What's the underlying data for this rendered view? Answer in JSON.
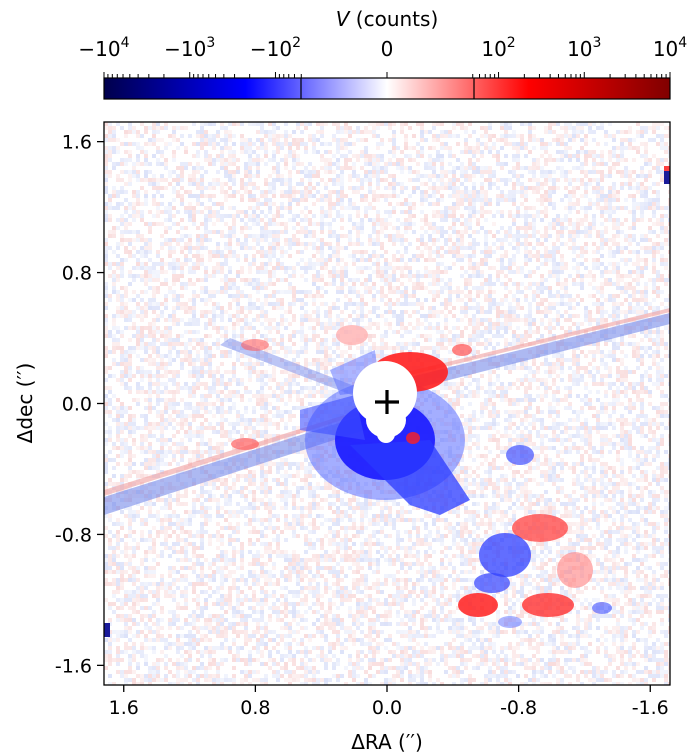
{
  "chart_data": {
    "type": "heatmap",
    "colorbar": {
      "label_var": "V",
      "label_rest": " (counts)",
      "scale": "symlog",
      "range": [
        -10000,
        10000
      ],
      "linthresh": 50,
      "colormap": "seismic",
      "ticks": [
        {
          "value": -10000,
          "base": "−10",
          "exp": "4"
        },
        {
          "value": -1000,
          "base": "−10",
          "exp": "3"
        },
        {
          "value": -100,
          "base": "−10",
          "exp": "2"
        },
        {
          "value": 0,
          "base": "0",
          "exp": ""
        },
        {
          "value": 100,
          "base": "10",
          "exp": "2"
        },
        {
          "value": 1000,
          "base": "10",
          "exp": "3"
        },
        {
          "value": 10000,
          "base": "10",
          "exp": "4"
        }
      ]
    },
    "xlabel": "ΔRA (′′)",
    "ylabel": "Δdec (′′)",
    "xlim": [
      1.72,
      -1.72
    ],
    "ylim": [
      -1.72,
      1.72
    ],
    "xticks": [
      {
        "value": 1.6,
        "label": "1.6"
      },
      {
        "value": 0.8,
        "label": "0.8"
      },
      {
        "value": 0.0,
        "label": "0.0"
      },
      {
        "value": -0.8,
        "label": "-0.8"
      },
      {
        "value": -1.6,
        "label": "-1.6"
      }
    ],
    "yticks": [
      {
        "value": 1.6,
        "label": "1.6"
      },
      {
        "value": 0.8,
        "label": "0.8"
      },
      {
        "value": 0.0,
        "label": "0.0"
      },
      {
        "value": -0.8,
        "label": "-0.8"
      },
      {
        "value": -1.6,
        "label": "-1.6"
      }
    ],
    "star_position": [
      0.0,
      0.0
    ],
    "masked_region": "central white disc over the star",
    "features": [
      {
        "kind": "negative",
        "desc": "strong blue core around star",
        "center": [
          0.0,
          -0.25
        ]
      },
      {
        "kind": "negative",
        "desc": "diagonal streak (spider/diffraction) lower-left",
        "from": [
          0.0,
          0.0
        ],
        "to": [
          1.72,
          -0.56
        ]
      },
      {
        "kind": "negative",
        "desc": "diagonal streak upper-right",
        "from": [
          0.0,
          0.0
        ],
        "to": [
          -1.72,
          0.56
        ]
      },
      {
        "kind": "positive",
        "desc": "red patch above-right of star",
        "center": [
          -0.18,
          0.2
        ]
      },
      {
        "kind": "mixed",
        "desc": "red/blue clumps lower-right",
        "center": [
          -0.85,
          -1.05
        ]
      }
    ]
  }
}
